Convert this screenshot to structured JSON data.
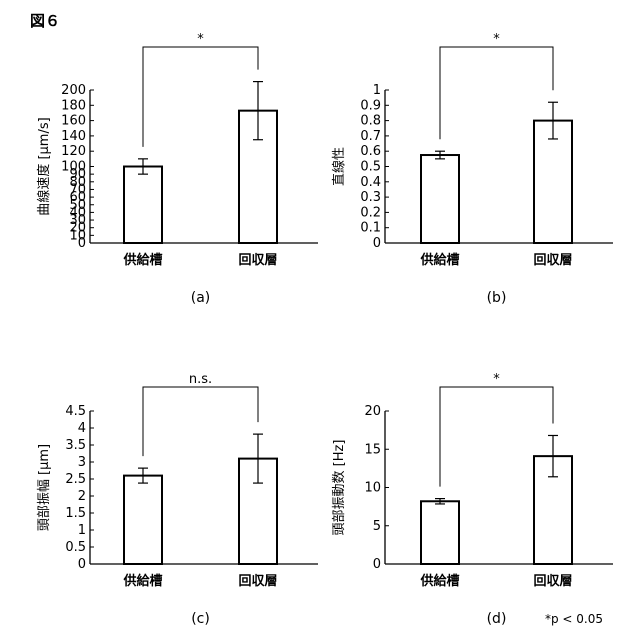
{
  "figure_label": "図６",
  "footnote": "*p < 0.05",
  "chart_data": [
    {
      "type": "bar",
      "panel_label": "(a)",
      "ylabel": "曲線速度 [μm/s]",
      "categories": [
        "供給槽",
        "回収層"
      ],
      "values": [
        100,
        173
      ],
      "errors": [
        10,
        38
      ],
      "ylim": [
        0,
        200
      ],
      "yticks": [
        "0",
        "10",
        "20",
        "30",
        "40",
        "50",
        "60",
        "70",
        "80",
        "90",
        "100",
        "120",
        "140",
        "160",
        "180",
        "200"
      ],
      "significance": "*",
      "grid": false
    },
    {
      "type": "bar",
      "panel_label": "(b)",
      "ylabel": "直線性",
      "categories": [
        "供給槽",
        "回収層"
      ],
      "values": [
        0.575,
        0.8
      ],
      "errors": [
        0.025,
        0.12
      ],
      "ylim": [
        0,
        1
      ],
      "yticks": [
        "0",
        "0.1",
        "0.2",
        "0.3",
        "0.4",
        "0.5",
        "0.6",
        "0.7",
        "0.8",
        "0.9",
        "1"
      ],
      "significance": "*",
      "grid": false
    },
    {
      "type": "bar",
      "panel_label": "(c)",
      "ylabel": "頭部振幅 [μm]",
      "categories": [
        "供給槽",
        "回収層"
      ],
      "values": [
        2.6,
        3.1
      ],
      "errors": [
        0.22,
        0.72
      ],
      "ylim": [
        0,
        4.5
      ],
      "yticks": [
        "0",
        "0.5",
        "1",
        "1.5",
        "2",
        "2.5",
        "3",
        "3.5",
        "4",
        "4.5"
      ],
      "significance": "n.s.",
      "grid": false
    },
    {
      "type": "bar",
      "panel_label": "(d)",
      "ylabel": "頭部振動数 [Hz]",
      "categories": [
        "供給槽",
        "回収層"
      ],
      "values": [
        8.2,
        14.1
      ],
      "errors": [
        0.35,
        2.7
      ],
      "ylim": [
        0,
        20
      ],
      "yticks": [
        "0",
        "5",
        "10",
        "15",
        "20"
      ],
      "significance": "*",
      "grid": false
    }
  ]
}
